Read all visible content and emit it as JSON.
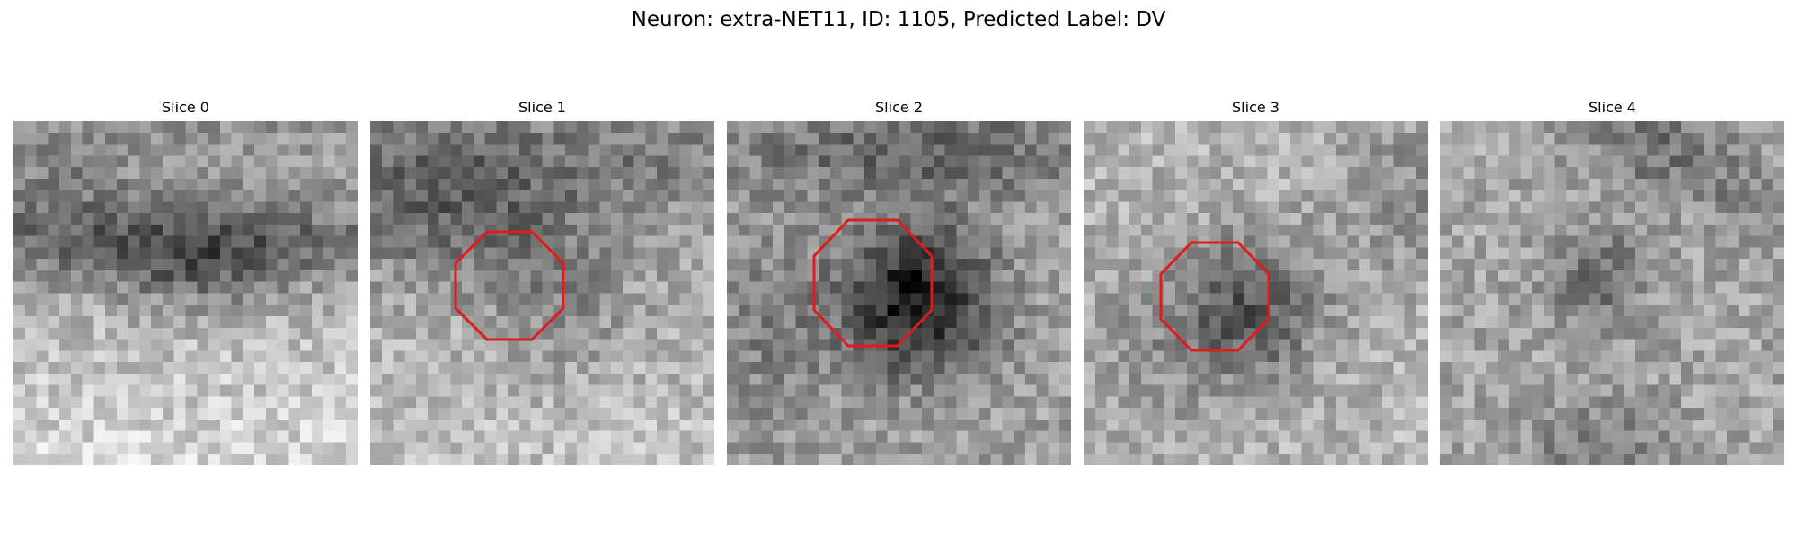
{
  "figure": {
    "title": "Neuron: extra-NET11, ID: 1105, Predicted Label: DV"
  },
  "slices": [
    {
      "label": "Slice 0",
      "roi": false
    },
    {
      "label": "Slice 1",
      "roi": true
    },
    {
      "label": "Slice 2",
      "roi": true
    },
    {
      "label": "Slice 3",
      "roi": true
    },
    {
      "label": "Slice 4",
      "roi": false
    }
  ],
  "colors": {
    "roi_outline": "#e31a1c",
    "colormap": "gray"
  }
}
